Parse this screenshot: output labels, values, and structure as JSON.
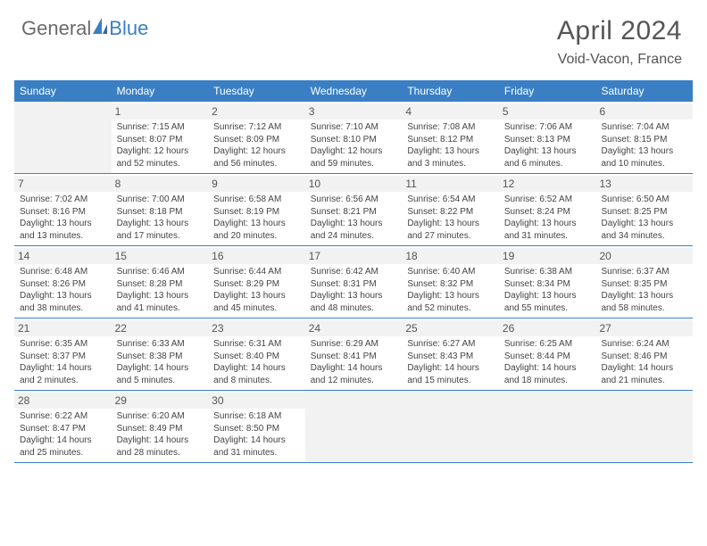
{
  "brand": {
    "part1": "General",
    "part2": "Blue"
  },
  "title": "April 2024",
  "location": "Void-Vacon, France",
  "colors": {
    "accent": "#3a7fc4",
    "header_text": "#ffffff",
    "body_text": "#444444",
    "muted_bg": "#f2f2f2",
    "title_text": "#555555"
  },
  "dayNames": [
    "Sunday",
    "Monday",
    "Tuesday",
    "Wednesday",
    "Thursday",
    "Friday",
    "Saturday"
  ],
  "weeks": [
    [
      null,
      {
        "n": "1",
        "sr": "7:15 AM",
        "ss": "8:07 PM",
        "dl": "12 hours and 52 minutes."
      },
      {
        "n": "2",
        "sr": "7:12 AM",
        "ss": "8:09 PM",
        "dl": "12 hours and 56 minutes."
      },
      {
        "n": "3",
        "sr": "7:10 AM",
        "ss": "8:10 PM",
        "dl": "12 hours and 59 minutes."
      },
      {
        "n": "4",
        "sr": "7:08 AM",
        "ss": "8:12 PM",
        "dl": "13 hours and 3 minutes."
      },
      {
        "n": "5",
        "sr": "7:06 AM",
        "ss": "8:13 PM",
        "dl": "13 hours and 6 minutes."
      },
      {
        "n": "6",
        "sr": "7:04 AM",
        "ss": "8:15 PM",
        "dl": "13 hours and 10 minutes."
      }
    ],
    [
      {
        "n": "7",
        "sr": "7:02 AM",
        "ss": "8:16 PM",
        "dl": "13 hours and 13 minutes."
      },
      {
        "n": "8",
        "sr": "7:00 AM",
        "ss": "8:18 PM",
        "dl": "13 hours and 17 minutes."
      },
      {
        "n": "9",
        "sr": "6:58 AM",
        "ss": "8:19 PM",
        "dl": "13 hours and 20 minutes."
      },
      {
        "n": "10",
        "sr": "6:56 AM",
        "ss": "8:21 PM",
        "dl": "13 hours and 24 minutes."
      },
      {
        "n": "11",
        "sr": "6:54 AM",
        "ss": "8:22 PM",
        "dl": "13 hours and 27 minutes."
      },
      {
        "n": "12",
        "sr": "6:52 AM",
        "ss": "8:24 PM",
        "dl": "13 hours and 31 minutes."
      },
      {
        "n": "13",
        "sr": "6:50 AM",
        "ss": "8:25 PM",
        "dl": "13 hours and 34 minutes."
      }
    ],
    [
      {
        "n": "14",
        "sr": "6:48 AM",
        "ss": "8:26 PM",
        "dl": "13 hours and 38 minutes."
      },
      {
        "n": "15",
        "sr": "6:46 AM",
        "ss": "8:28 PM",
        "dl": "13 hours and 41 minutes."
      },
      {
        "n": "16",
        "sr": "6:44 AM",
        "ss": "8:29 PM",
        "dl": "13 hours and 45 minutes."
      },
      {
        "n": "17",
        "sr": "6:42 AM",
        "ss": "8:31 PM",
        "dl": "13 hours and 48 minutes."
      },
      {
        "n": "18",
        "sr": "6:40 AM",
        "ss": "8:32 PM",
        "dl": "13 hours and 52 minutes."
      },
      {
        "n": "19",
        "sr": "6:38 AM",
        "ss": "8:34 PM",
        "dl": "13 hours and 55 minutes."
      },
      {
        "n": "20",
        "sr": "6:37 AM",
        "ss": "8:35 PM",
        "dl": "13 hours and 58 minutes."
      }
    ],
    [
      {
        "n": "21",
        "sr": "6:35 AM",
        "ss": "8:37 PM",
        "dl": "14 hours and 2 minutes."
      },
      {
        "n": "22",
        "sr": "6:33 AM",
        "ss": "8:38 PM",
        "dl": "14 hours and 5 minutes."
      },
      {
        "n": "23",
        "sr": "6:31 AM",
        "ss": "8:40 PM",
        "dl": "14 hours and 8 minutes."
      },
      {
        "n": "24",
        "sr": "6:29 AM",
        "ss": "8:41 PM",
        "dl": "14 hours and 12 minutes."
      },
      {
        "n": "25",
        "sr": "6:27 AM",
        "ss": "8:43 PM",
        "dl": "14 hours and 15 minutes."
      },
      {
        "n": "26",
        "sr": "6:25 AM",
        "ss": "8:44 PM",
        "dl": "14 hours and 18 minutes."
      },
      {
        "n": "27",
        "sr": "6:24 AM",
        "ss": "8:46 PM",
        "dl": "14 hours and 21 minutes."
      }
    ],
    [
      {
        "n": "28",
        "sr": "6:22 AM",
        "ss": "8:47 PM",
        "dl": "14 hours and 25 minutes."
      },
      {
        "n": "29",
        "sr": "6:20 AM",
        "ss": "8:49 PM",
        "dl": "14 hours and 28 minutes."
      },
      {
        "n": "30",
        "sr": "6:18 AM",
        "ss": "8:50 PM",
        "dl": "14 hours and 31 minutes."
      },
      null,
      null,
      null,
      null
    ]
  ],
  "labels": {
    "sunrise": "Sunrise:",
    "sunset": "Sunset:",
    "daylight": "Daylight:"
  }
}
